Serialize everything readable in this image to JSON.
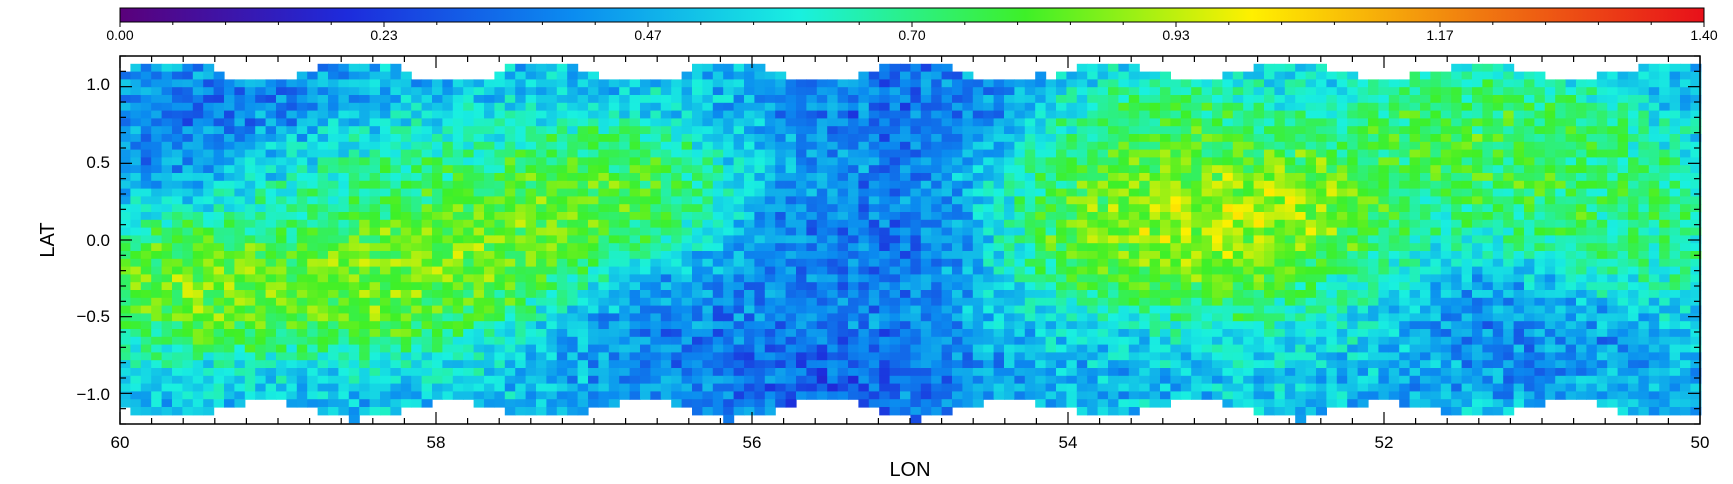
{
  "chart_data": {
    "type": "heatmap",
    "title": "",
    "xlabel": "LON",
    "ylabel": "LAT",
    "xlim": [
      60,
      50
    ],
    "ylim": [
      -1.2,
      1.2
    ],
    "x_ticks": [
      "60",
      "58",
      "56",
      "54",
      "52",
      "50"
    ],
    "y_ticks": [
      "1.0",
      "0.5",
      "0.0",
      "−0.5",
      "−1.0"
    ],
    "colorbar": {
      "range": [
        0.0,
        1.4
      ],
      "tick_labels": [
        "0.00",
        "0.23",
        "0.47",
        "0.70",
        "0.93",
        "1.17",
        "1.40"
      ],
      "colormap": "rainbow",
      "colors": [
        "#5a007a",
        "#1d2bdc",
        "#0b8cf0",
        "#19f0e0",
        "#3ef028",
        "#fff000",
        "#f07a10",
        "#e8101a"
      ]
    },
    "grid": false,
    "coverage_lat_edge": 1.1,
    "features": [
      {
        "lon": 59.3,
        "lat": 0.75,
        "value": 0.3
      },
      {
        "lon": 59.5,
        "lat": -0.3,
        "value": 0.95
      },
      {
        "lon": 58.6,
        "lat": 0.4,
        "value": 0.75
      },
      {
        "lon": 57.8,
        "lat": -0.05,
        "value": 0.95
      },
      {
        "lon": 58.4,
        "lat": -0.3,
        "value": 0.92
      },
      {
        "lon": 57.0,
        "lat": 0.3,
        "value": 0.9
      },
      {
        "lon": 56.3,
        "lat": -0.6,
        "value": 0.35
      },
      {
        "lon": 55.5,
        "lat": -0.9,
        "value": 0.25
      },
      {
        "lon": 55.3,
        "lat": 0.0,
        "value": 0.3
      },
      {
        "lon": 55.0,
        "lat": 0.85,
        "value": 0.3
      },
      {
        "lon": 53.5,
        "lat": 0.6,
        "value": 0.85
      },
      {
        "lon": 53.6,
        "lat": 0.05,
        "value": 0.95
      },
      {
        "lon": 52.8,
        "lat": 0.2,
        "value": 1.05
      },
      {
        "lon": 52.8,
        "lat": -0.1,
        "value": 0.95
      },
      {
        "lon": 51.5,
        "lat": 0.7,
        "value": 0.85
      },
      {
        "lon": 51.0,
        "lat": 0.4,
        "value": 0.8
      },
      {
        "lon": 50.5,
        "lat": 0.0,
        "value": 0.78
      },
      {
        "lon": 51.2,
        "lat": -0.55,
        "value": 0.35
      },
      {
        "lon": 52.3,
        "lat": -0.3,
        "value": 0.6
      }
    ]
  }
}
